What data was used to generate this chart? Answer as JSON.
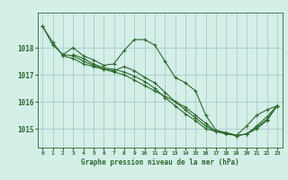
{
  "title": "Graphe pression niveau de la mer (hPa)",
  "background_color": "#d4eee8",
  "grid_color": "#aacccc",
  "line_color": "#2d6a2d",
  "marker_color": "#2d6a2d",
  "xlim": [
    -0.5,
    23.5
  ],
  "ylim": [
    1014.3,
    1019.3
  ],
  "yticks": [
    1015,
    1016,
    1017,
    1018
  ],
  "xticks": [
    0,
    1,
    2,
    3,
    4,
    5,
    6,
    7,
    8,
    9,
    10,
    11,
    12,
    13,
    14,
    15,
    16,
    17,
    18,
    19,
    20,
    21,
    22,
    23
  ],
  "series": [
    {
      "x": [
        0,
        1,
        2,
        3,
        4,
        5,
        6,
        7,
        8,
        9,
        10,
        11,
        12,
        13,
        14,
        15,
        16,
        17,
        18,
        19,
        20,
        21,
        22,
        23
      ],
      "y": [
        1018.8,
        1018.2,
        1017.7,
        1017.6,
        1017.4,
        1017.3,
        1017.2,
        1017.1,
        1017.0,
        1016.8,
        1016.6,
        1016.4,
        1016.2,
        1016.0,
        1015.8,
        1015.5,
        1015.2,
        1014.9,
        1014.8,
        1014.75,
        1015.1,
        1015.5,
        1015.7,
        1015.85
      ]
    },
    {
      "x": [
        0,
        1,
        2,
        3,
        4,
        5,
        6,
        7,
        8,
        9,
        10,
        11,
        12,
        13,
        14,
        15,
        16,
        17,
        18,
        19,
        20,
        21,
        22,
        23
      ],
      "y": [
        1018.8,
        1018.1,
        1017.75,
        1018.0,
        1017.7,
        1017.55,
        1017.35,
        1017.4,
        1017.9,
        1018.3,
        1018.3,
        1018.1,
        1017.5,
        1016.9,
        1016.7,
        1016.4,
        1015.5,
        1014.95,
        1014.85,
        1014.75,
        1014.8,
        1015.1,
        1015.45,
        1015.85
      ]
    },
    {
      "x": [
        2,
        3,
        4,
        5,
        6,
        7,
        8,
        9,
        10,
        11,
        12,
        13,
        14,
        15,
        16,
        17,
        18,
        19,
        20,
        21,
        22,
        23
      ],
      "y": [
        1017.75,
        1017.7,
        1017.5,
        1017.35,
        1017.2,
        1017.15,
        1017.3,
        1017.15,
        1016.9,
        1016.7,
        1016.35,
        1016.0,
        1015.7,
        1015.4,
        1015.1,
        1014.9,
        1014.85,
        1014.75,
        1014.8,
        1015.05,
        1015.35,
        1015.85
      ]
    },
    {
      "x": [
        3,
        4,
        5,
        6,
        7,
        8,
        9,
        10,
        11,
        12,
        13,
        14,
        15,
        16,
        17,
        18,
        19,
        20,
        21,
        22,
        23
      ],
      "y": [
        1017.75,
        1017.6,
        1017.4,
        1017.25,
        1017.2,
        1017.1,
        1016.95,
        1016.75,
        1016.5,
        1016.15,
        1015.85,
        1015.55,
        1015.3,
        1015.0,
        1014.9,
        1014.85,
        1014.75,
        1014.8,
        1015.0,
        1015.3,
        1015.85
      ]
    }
  ]
}
